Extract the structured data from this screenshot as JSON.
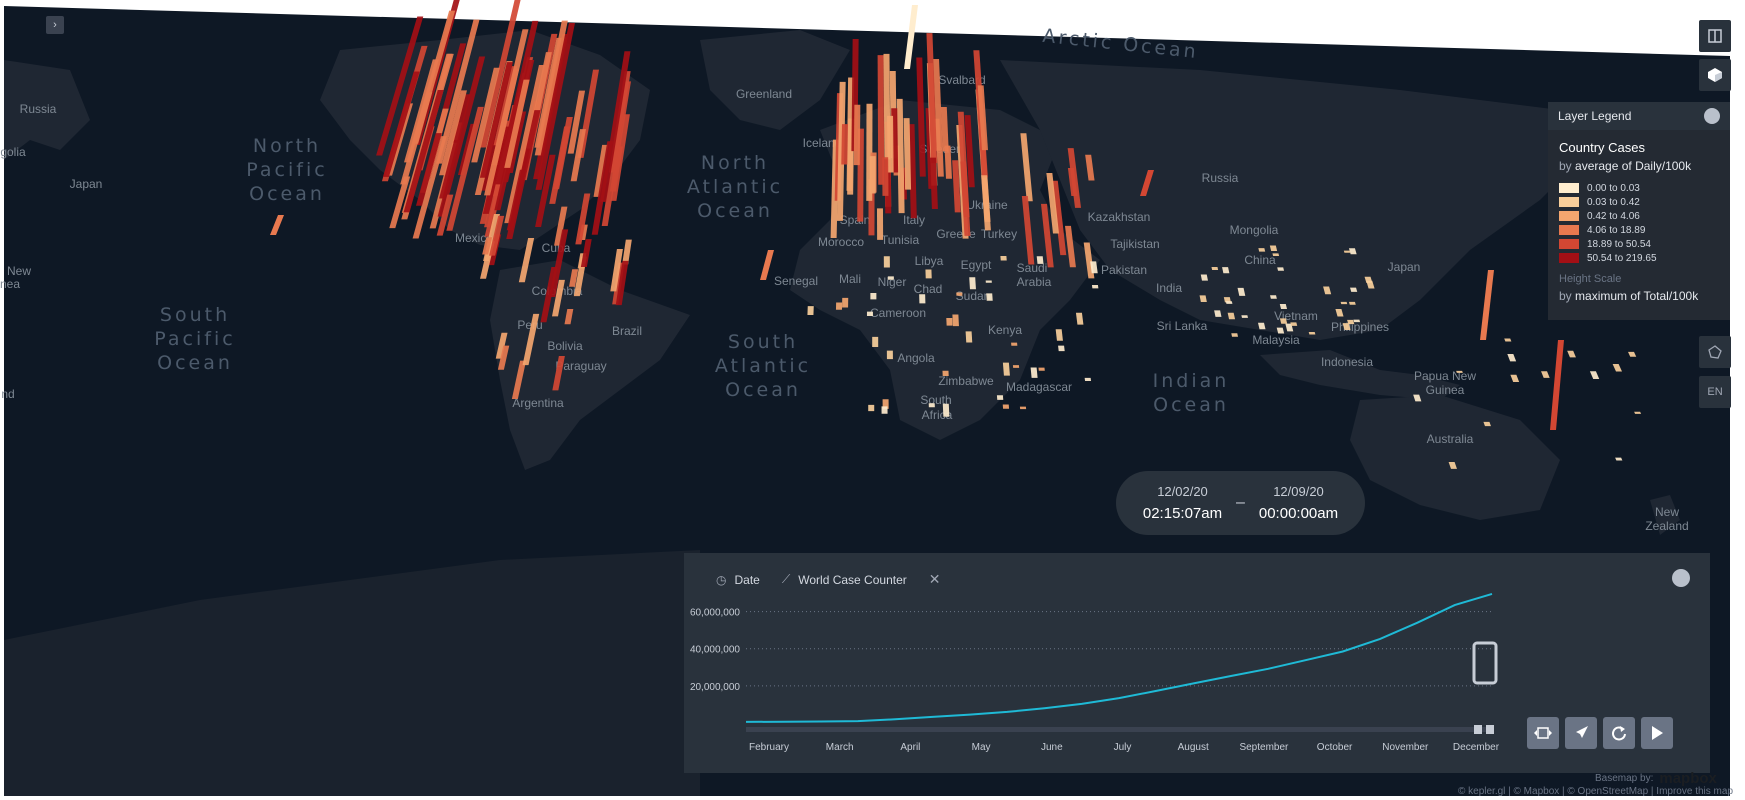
{
  "oceans": [
    {
      "label": "North Pacific Ocean",
      "x": 287,
      "y": 176
    },
    {
      "label": "South Pacific Ocean",
      "x": 195,
      "y": 345
    },
    {
      "label": "North Atlantic Ocean",
      "x": 735,
      "y": 193
    },
    {
      "label": "South Atlantic Ocean",
      "x": 763,
      "y": 372
    },
    {
      "label": "Indian Ocean",
      "x": 1191,
      "y": 399
    },
    {
      "label": "Arctic Ocean",
      "x": 1120,
      "y": 50
    }
  ],
  "countries": [
    {
      "label": "Russia",
      "x": 38,
      "y": 113
    },
    {
      "label": "golia",
      "x": 13,
      "y": 156
    },
    {
      "label": "Japan",
      "x": 86,
      "y": 188
    },
    {
      "label": "New",
      "x": 19,
      "y": 275
    },
    {
      "label": "nea",
      "x": 10,
      "y": 288
    },
    {
      "label": "nd",
      "x": 8,
      "y": 398
    },
    {
      "label": "Greenland",
      "x": 764,
      "y": 98
    },
    {
      "label": "Svalbard",
      "x": 962,
      "y": 84
    },
    {
      "label": "Iceland",
      "x": 822,
      "y": 147
    },
    {
      "label": "Sweden",
      "x": 941,
      "y": 153
    },
    {
      "label": "Russia",
      "x": 1220,
      "y": 182
    },
    {
      "label": "Kazakhstan",
      "x": 1119,
      "y": 221
    },
    {
      "label": "Mongolia",
      "x": 1254,
      "y": 234
    },
    {
      "label": "Tajikistan",
      "x": 1135,
      "y": 248
    },
    {
      "label": "China",
      "x": 1260,
      "y": 264
    },
    {
      "label": "Japan",
      "x": 1404,
      "y": 271
    },
    {
      "label": "Pakistan",
      "x": 1124,
      "y": 274
    },
    {
      "label": "India",
      "x": 1169,
      "y": 292
    },
    {
      "label": "Vietnam",
      "x": 1296,
      "y": 320
    },
    {
      "label": "Philippines",
      "x": 1360,
      "y": 331
    },
    {
      "label": "Sri Lanka",
      "x": 1182,
      "y": 330
    },
    {
      "label": "Malaysia",
      "x": 1276,
      "y": 344
    },
    {
      "label": "Indonesia",
      "x": 1347,
      "y": 366
    },
    {
      "label": "Papua New",
      "x": 1445,
      "y": 380
    },
    {
      "label": "Guinea",
      "x": 1445,
      "y": 394
    },
    {
      "label": "Australia",
      "x": 1450,
      "y": 443
    },
    {
      "label": "New",
      "x": 1667,
      "y": 516
    },
    {
      "label": "Zealand",
      "x": 1667,
      "y": 530
    },
    {
      "label": "Mexico",
      "x": 474,
      "y": 242
    },
    {
      "label": "Cuba",
      "x": 556,
      "y": 252
    },
    {
      "label": "Colombia",
      "x": 557,
      "y": 295
    },
    {
      "label": "Peru",
      "x": 530,
      "y": 329
    },
    {
      "label": "Brazil",
      "x": 627,
      "y": 335
    },
    {
      "label": "Bolivia",
      "x": 565,
      "y": 350
    },
    {
      "label": "Paraguay",
      "x": 581,
      "y": 370
    },
    {
      "label": "Argentina",
      "x": 538,
      "y": 407
    },
    {
      "label": "Spain",
      "x": 855,
      "y": 224
    },
    {
      "label": "Italy",
      "x": 914,
      "y": 224
    },
    {
      "label": "Ukraine",
      "x": 987,
      "y": 209
    },
    {
      "label": "Greece",
      "x": 956,
      "y": 238
    },
    {
      "label": "Turkey",
      "x": 999,
      "y": 238
    },
    {
      "label": "Morocco",
      "x": 841,
      "y": 246
    },
    {
      "label": "Tunisia",
      "x": 900,
      "y": 244
    },
    {
      "label": "Libya",
      "x": 929,
      "y": 265
    },
    {
      "label": "Egypt",
      "x": 976,
      "y": 269
    },
    {
      "label": "Saudi",
      "x": 1032,
      "y": 272
    },
    {
      "label": "Arabia",
      "x": 1034,
      "y": 286
    },
    {
      "label": "Senegal",
      "x": 796,
      "y": 285
    },
    {
      "label": "Mali",
      "x": 850,
      "y": 283
    },
    {
      "label": "Niger",
      "x": 892,
      "y": 286
    },
    {
      "label": "Chad",
      "x": 928,
      "y": 293
    },
    {
      "label": "Sudan",
      "x": 973,
      "y": 300
    },
    {
      "label": "Cameroon",
      "x": 898,
      "y": 317
    },
    {
      "label": "Kenya",
      "x": 1005,
      "y": 334
    },
    {
      "label": "Angola",
      "x": 916,
      "y": 362
    },
    {
      "label": "Zimbabwe",
      "x": 966,
      "y": 385
    },
    {
      "label": "Madagascar",
      "x": 1039,
      "y": 391
    },
    {
      "label": "South",
      "x": 936,
      "y": 404
    },
    {
      "label": "Africa",
      "x": 937,
      "y": 419
    }
  ],
  "legend": {
    "header": "Layer Legend",
    "layer_name": "Country Cases",
    "color_by_prefix": "by",
    "color_by_field": "average of Daily/100k",
    "items": [
      {
        "label": "0.00 to 0.03",
        "color": "#ffedce"
      },
      {
        "label": "0.03 to 0.42",
        "color": "#f9cf9b"
      },
      {
        "label": "0.42 to 4.06",
        "color": "#f4a66f"
      },
      {
        "label": "4.06 to 18.89",
        "color": "#e8794f"
      },
      {
        "label": "18.89 to 50.54",
        "color": "#d34733"
      },
      {
        "label": "50.54 to 219.65",
        "color": "#a30f15"
      }
    ],
    "height_scale_label": "Height Scale",
    "height_by_prefix": "by",
    "height_by_field": "maximum of Total/100k"
  },
  "time_range": {
    "start_date": "12/02/20",
    "start_time": "02:15:07am",
    "separator": "–",
    "end_date": "12/09/20",
    "end_time": "00:00:00am"
  },
  "time_panel": {
    "tab_date": "Date",
    "tab_chart": "World Case Counter"
  },
  "chart_data": {
    "type": "line",
    "title": "",
    "xlabel": "",
    "ylabel": "",
    "ylim": [
      0,
      70000000
    ],
    "y_ticks": [
      "60,000,000",
      "40,000,000",
      "20,000,000"
    ],
    "y_tick_values": [
      60000000,
      40000000,
      20000000
    ],
    "categories": [
      "February",
      "March",
      "April",
      "May",
      "June",
      "July",
      "August",
      "September",
      "October",
      "November",
      "December"
    ],
    "x": [
      "Jan 22",
      "Feb 15",
      "Mar 15",
      "Apr 1",
      "Apr 15",
      "May 1",
      "May 15",
      "Jun 1",
      "Jun 15",
      "Jul 1",
      "Jul 15",
      "Aug 1",
      "Aug 15",
      "Sep 1",
      "Sep 15",
      "Oct 1",
      "Oct 15",
      "Nov 1",
      "Nov 15",
      "Dec 1",
      "Dec 9"
    ],
    "values": [
      600000,
      700000,
      800000,
      1000000,
      2000000,
      3300000,
      4500000,
      6000000,
      7900000,
      10300000,
      13400000,
      17300000,
      21300000,
      25300000,
      29200000,
      33800000,
      38500000,
      45300000,
      54000000,
      63500000,
      69500000
    ],
    "grid": true,
    "line_color": "#1fbad6"
  },
  "attribution": "© kepler.gl | © Mapbox | © OpenStreetMap | Improve this map",
  "basemap_by": "Basemap by:",
  "mapbox_logo": "mapbox",
  "language_button": "EN",
  "colors": {
    "map_bg": "#0e1825",
    "land": "#1f2733",
    "panel": "#29323c"
  }
}
